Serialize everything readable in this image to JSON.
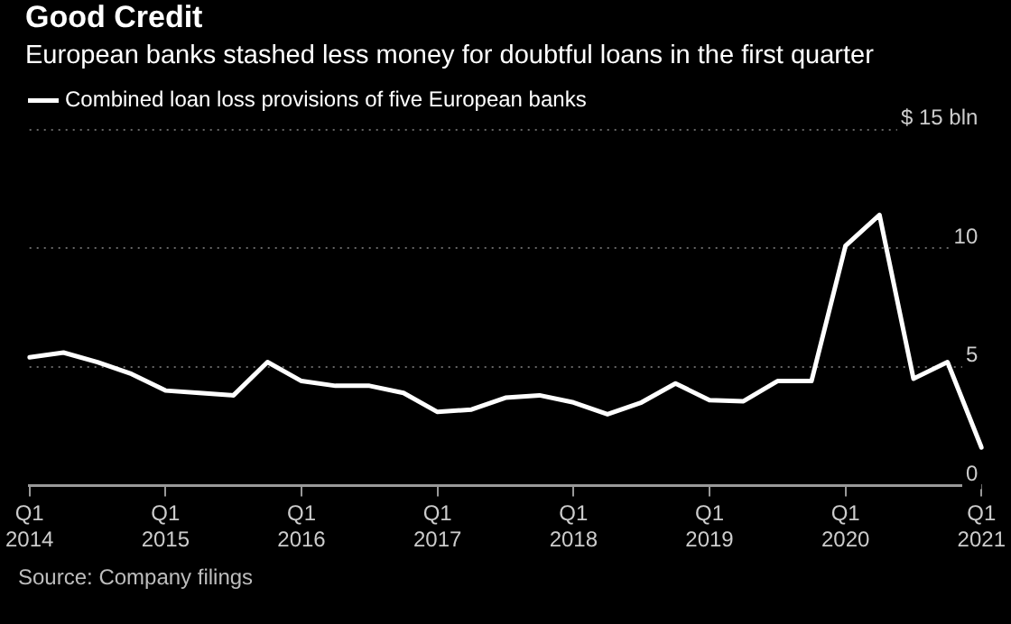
{
  "chart_data": {
    "type": "line",
    "title": "Good Credit",
    "subtitle": "European banks stashed less money for doubtful loans in the first quarter",
    "categories": [
      "Q1 2014",
      null,
      null,
      null,
      "Q1 2015",
      null,
      null,
      null,
      "Q1 2016",
      null,
      null,
      null,
      "Q1 2017",
      null,
      null,
      null,
      "Q1 2018",
      null,
      null,
      null,
      "Q1 2019",
      null,
      null,
      null,
      "Q1 2020",
      null,
      null,
      null,
      "Q1 2021"
    ],
    "series": [
      {
        "name": "Combined loan loss provisions of five European banks",
        "color": "#ffffff",
        "values": [
          5.4,
          5.6,
          5.2,
          4.7,
          4.0,
          3.9,
          3.8,
          5.2,
          4.4,
          4.2,
          4.2,
          3.9,
          3.1,
          3.2,
          3.7,
          3.8,
          3.5,
          3.0,
          3.5,
          4.3,
          3.6,
          3.55,
          4.4,
          4.4,
          10.1,
          11.4,
          4.5,
          5.2,
          1.6
        ]
      }
    ],
    "ylim": [
      0,
      15
    ],
    "yticks": [
      0,
      5,
      10,
      {
        "value": 15,
        "label": "$ 15 bln"
      }
    ],
    "grid": "y",
    "legend": "top left",
    "annotations": [
      "Source: Company filings"
    ]
  }
}
